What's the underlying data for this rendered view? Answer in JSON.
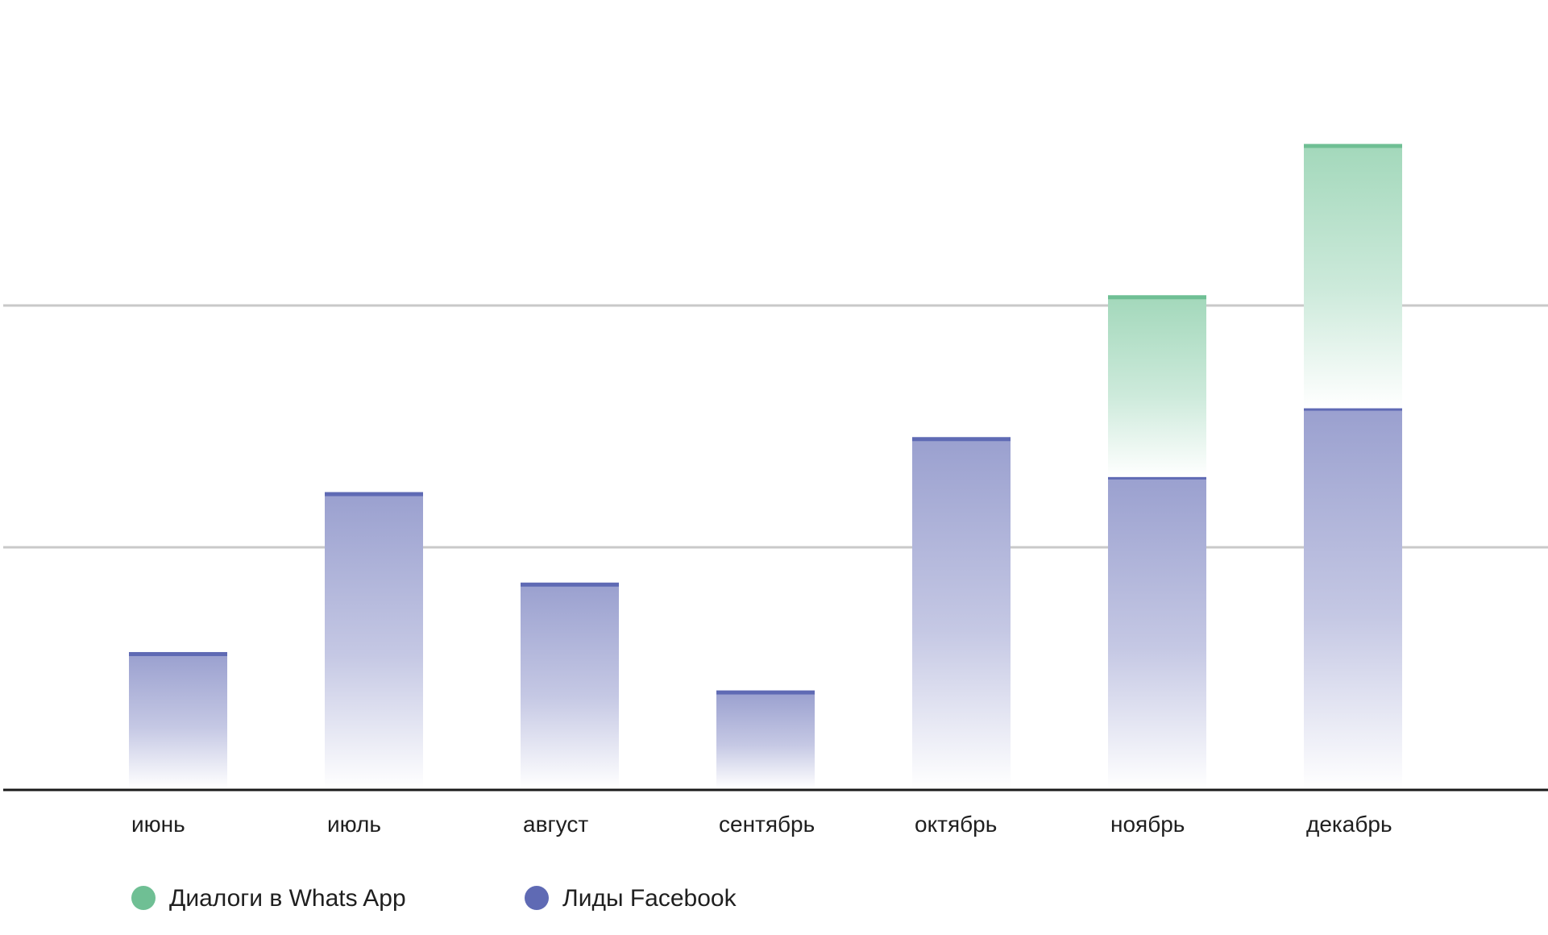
{
  "chart_data": {
    "type": "bar",
    "stacked": true,
    "title": "",
    "xlabel": "",
    "ylabel": "",
    "ylim": [
      0,
      100
    ],
    "gridlines": [
      33.3,
      66.7
    ],
    "grid": true,
    "legend_position": "bottom-left",
    "categories": [
      "июнь",
      "июль",
      "август",
      "сентябрь",
      "октябрь",
      "ноябрь",
      "декабрь"
    ],
    "series": [
      {
        "name": "Лиды Facebook",
        "color": "#5f6ab4",
        "values": [
          18.6,
          40.7,
          28.2,
          13.3,
          48.3,
          43.0,
          52.5
        ]
      },
      {
        "name": "Диалоги в Whats App",
        "color": "#6fbf94",
        "values": [
          0,
          0,
          0,
          0,
          0,
          24.9,
          36.3
        ]
      }
    ]
  }
}
